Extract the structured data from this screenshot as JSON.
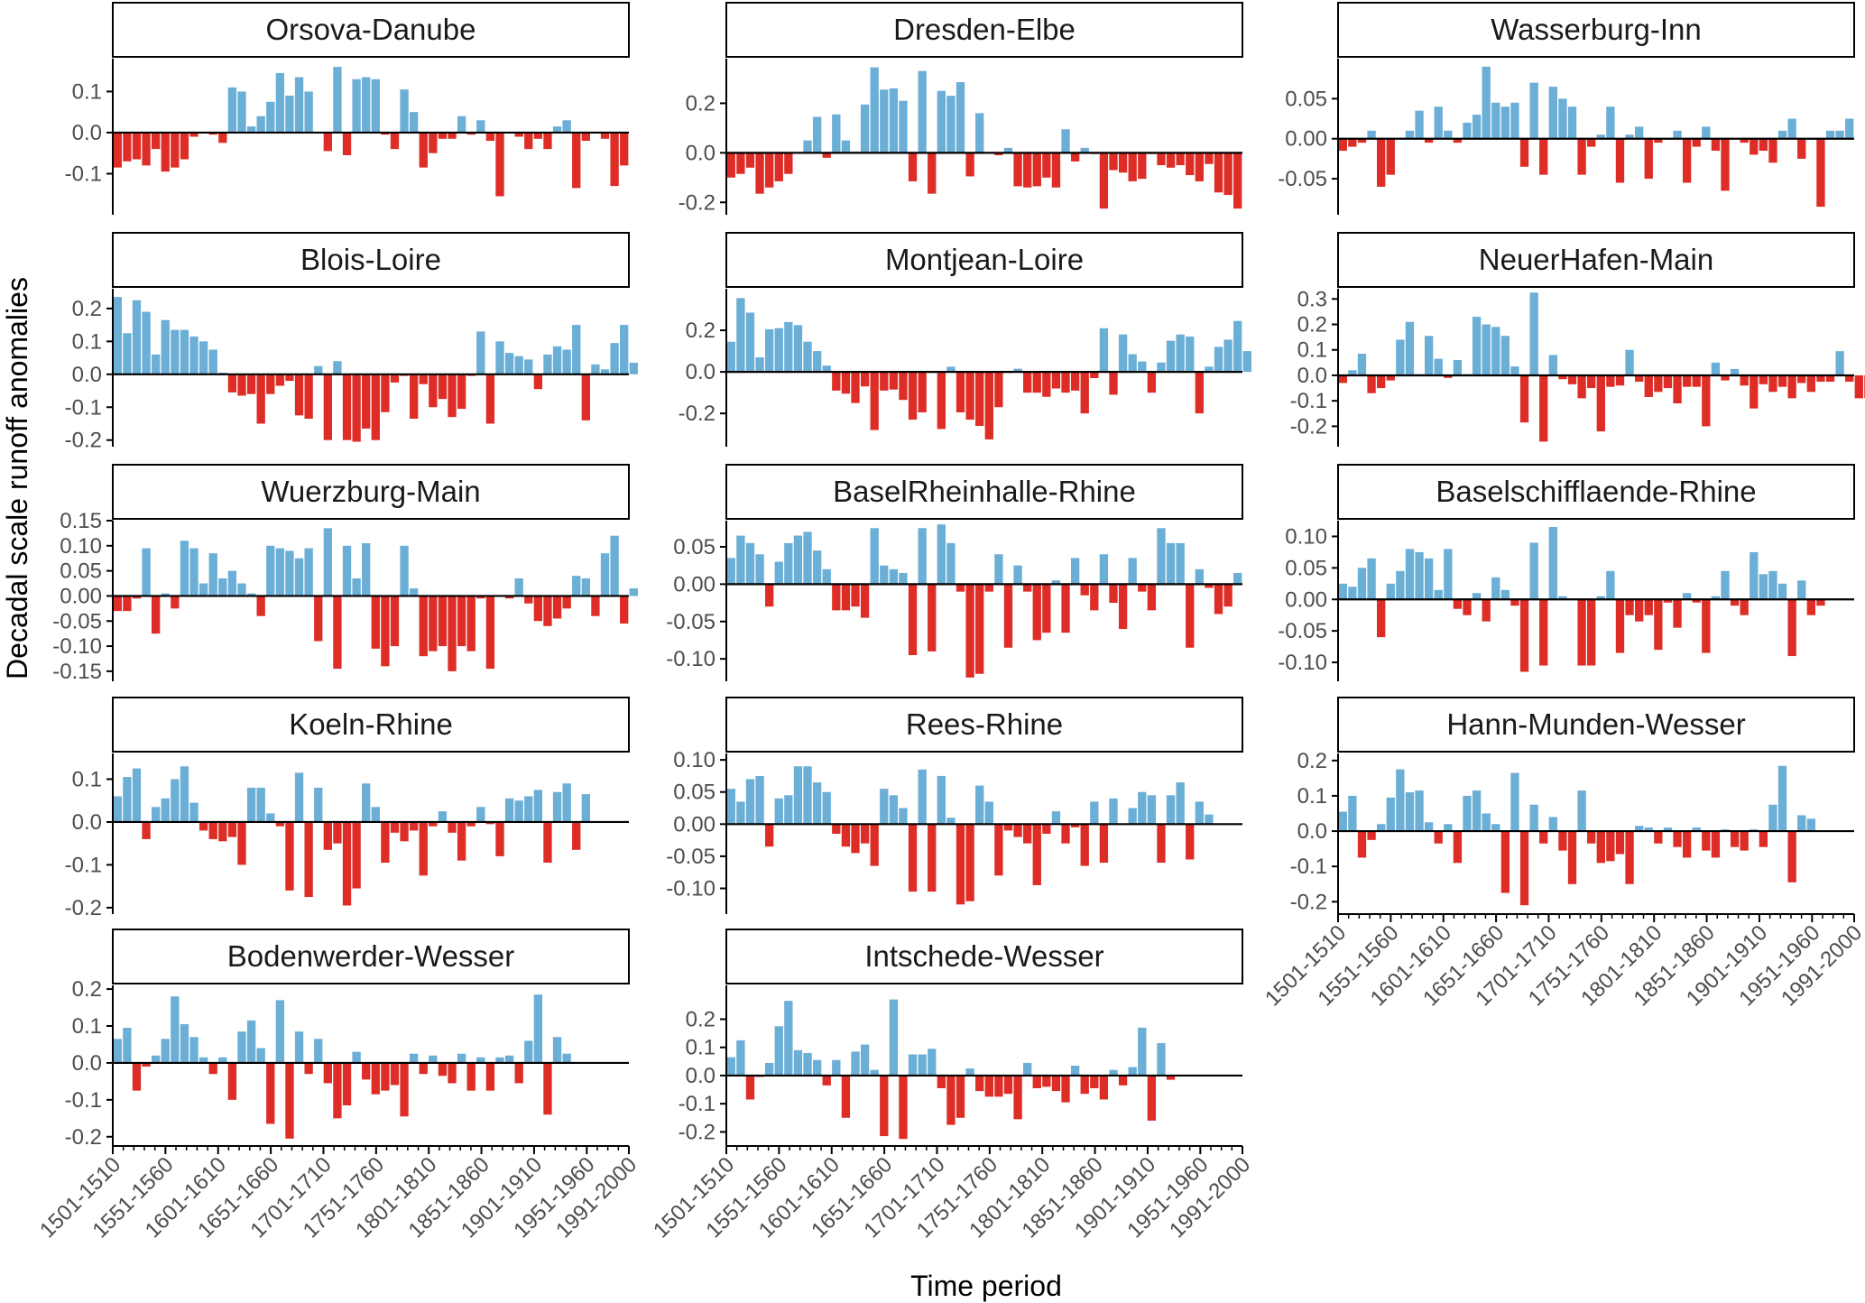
{
  "figure": {
    "xlabel": "Time period",
    "ylabel": "Decadal scale runoff anomalies",
    "x_tick_labels": [
      "1501-1510",
      "1551-1560",
      "1601-1610",
      "1651-1660",
      "1701-1710",
      "1751-1760",
      "1801-1810",
      "1851-1860",
      "1901-1910",
      "1951-1960",
      "1991-2000"
    ],
    "colors": {
      "positive": "#6baed6",
      "negative": "#de2d26",
      "axis": "#000000",
      "tick_text": "#4d4d4d",
      "strip_border": "#000000"
    }
  },
  "chart_data": [
    {
      "type": "bar",
      "title": "Orsova-Danube",
      "ylim": [
        -0.2,
        0.18
      ],
      "yticks": [
        -0.1,
        0,
        0.1
      ],
      "ytick_labels": [
        "-0.1",
        "0.0",
        "0.1"
      ],
      "values": [
        -0.085,
        -0.07,
        -0.065,
        -0.08,
        -0.04,
        -0.095,
        -0.085,
        -0.065,
        -0.01,
        0,
        -0.005,
        -0.025,
        0.11,
        0.1,
        0.015,
        0.04,
        0.075,
        0.145,
        0.09,
        0.135,
        0.1,
        0,
        -0.045,
        0.16,
        -0.055,
        0.13,
        0.135,
        0.13,
        -0.005,
        -0.04,
        0.105,
        0.05,
        -0.085,
        -0.05,
        -0.015,
        -0.015,
        0.04,
        -0.005,
        0.03,
        -0.02,
        -0.155,
        0,
        -0.01,
        -0.04,
        -0.015,
        -0.04,
        0.015,
        0.03,
        -0.135,
        -0.02,
        0,
        -0.015,
        -0.13,
        -0.08
      ]
    },
    {
      "type": "bar",
      "title": "Dresden-Elbe",
      "ylim": [
        -0.25,
        0.38
      ],
      "yticks": [
        -0.2,
        0,
        0.2
      ],
      "ytick_labels": [
        "-0.2",
        "0.0",
        "0.2"
      ],
      "values": [
        -0.1,
        -0.085,
        -0.06,
        -0.165,
        -0.14,
        -0.115,
        -0.085,
        0,
        0.05,
        0.145,
        -0.02,
        0.155,
        0.05,
        0.005,
        0.195,
        0.345,
        0.255,
        0.26,
        0.21,
        -0.115,
        0.33,
        -0.165,
        0.25,
        0.23,
        0.285,
        -0.095,
        0.16,
        0,
        -0.01,
        0.02,
        -0.135,
        -0.14,
        -0.135,
        -0.1,
        -0.14,
        0.095,
        -0.035,
        0.02,
        -0.005,
        -0.225,
        -0.07,
        -0.08,
        -0.115,
        -0.105,
        -0.005,
        -0.05,
        -0.06,
        -0.05,
        -0.09,
        -0.115,
        -0.045,
        -0.16,
        -0.17,
        -0.225
      ]
    },
    {
      "type": "bar",
      "title": "Wasserburg-Inn",
      "ylim": [
        -0.095,
        0.1
      ],
      "yticks": [
        -0.05,
        0,
        0.05
      ],
      "ytick_labels": [
        "-0.05",
        "0.00",
        "0.05"
      ],
      "values": [
        -0.015,
        -0.01,
        -0.005,
        0.01,
        -0.06,
        -0.045,
        0,
        0.01,
        0.035,
        -0.005,
        0.04,
        0.01,
        -0.005,
        0.02,
        0.03,
        0.09,
        0.045,
        0.04,
        0.045,
        -0.035,
        0.07,
        -0.045,
        0.065,
        0.05,
        0.04,
        -0.045,
        -0.01,
        0.005,
        0.04,
        -0.055,
        0.005,
        0.015,
        -0.05,
        -0.005,
        0,
        0.01,
        -0.055,
        -0.01,
        0.015,
        -0.015,
        -0.065,
        0,
        -0.005,
        -0.02,
        -0.015,
        -0.03,
        0.01,
        0.025,
        -0.025,
        0,
        -0.085,
        0.01,
        0.01,
        0.025
      ]
    },
    {
      "type": "bar",
      "title": "Blois-Loire",
      "ylim": [
        -0.22,
        0.26
      ],
      "yticks": [
        -0.2,
        -0.1,
        0,
        0.1,
        0.2
      ],
      "ytick_labels": [
        "-0.2",
        "-0.1",
        "0.0",
        "0.1",
        "0.2"
      ],
      "values": [
        0.235,
        0.125,
        0.225,
        0.19,
        0.06,
        0.165,
        0.135,
        0.135,
        0.115,
        0.1,
        0.075,
        0.005,
        -0.055,
        -0.065,
        -0.06,
        -0.15,
        -0.06,
        -0.035,
        -0.02,
        -0.125,
        -0.135,
        0.025,
        -0.2,
        0.04,
        -0.2,
        -0.205,
        -0.165,
        -0.2,
        -0.115,
        -0.025,
        -0.005,
        -0.135,
        -0.03,
        -0.1,
        -0.075,
        -0.13,
        -0.105,
        -0.005,
        0.13,
        -0.15,
        0.1,
        0.065,
        0.055,
        0.045,
        -0.045,
        0.06,
        0.085,
        0.075,
        0.15,
        -0.14,
        0.03,
        0.015,
        0.095,
        0.15,
        0.035
      ]
    },
    {
      "type": "bar",
      "title": "Montjean-Loire",
      "ylim": [
        -0.36,
        0.4
      ],
      "yticks": [
        -0.2,
        0,
        0.2
      ],
      "ytick_labels": [
        "-0.2",
        "0.0",
        "0.2"
      ],
      "values": [
        0.145,
        0.355,
        0.285,
        0.07,
        0.205,
        0.21,
        0.24,
        0.225,
        0.145,
        0.1,
        0.03,
        -0.09,
        -0.105,
        -0.15,
        -0.07,
        -0.28,
        -0.09,
        -0.085,
        -0.135,
        -0.23,
        -0.195,
        -0.005,
        -0.275,
        0.025,
        -0.195,
        -0.23,
        -0.26,
        -0.325,
        -0.17,
        -0.005,
        0.015,
        -0.1,
        -0.1,
        -0.12,
        -0.08,
        -0.1,
        -0.09,
        -0.2,
        -0.03,
        0.21,
        -0.11,
        0.18,
        0.085,
        0.05,
        -0.1,
        0.045,
        0.15,
        0.18,
        0.17,
        -0.2,
        0.025,
        0.12,
        0.155,
        0.245,
        0.1
      ]
    },
    {
      "type": "bar",
      "title": "NeuerHafen-Main",
      "ylim": [
        -0.28,
        0.34
      ],
      "yticks": [
        -0.2,
        -0.1,
        0,
        0.1,
        0.2,
        0.3
      ],
      "ytick_labels": [
        "-0.2",
        "-0.1",
        "0.0",
        "0.1",
        "0.2",
        "0.3"
      ],
      "values": [
        -0.03,
        0.02,
        0.085,
        -0.07,
        -0.05,
        -0.02,
        0.14,
        0.21,
        0.005,
        0.155,
        0.065,
        -0.01,
        0.06,
        0.005,
        0.23,
        0.2,
        0.19,
        0.155,
        0.035,
        -0.185,
        0.325,
        -0.26,
        0.08,
        -0.015,
        -0.035,
        -0.09,
        -0.05,
        -0.22,
        -0.045,
        -0.04,
        0.1,
        -0.025,
        -0.085,
        -0.065,
        -0.05,
        -0.11,
        -0.045,
        -0.045,
        -0.2,
        0.05,
        -0.02,
        0.025,
        -0.04,
        -0.13,
        -0.035,
        -0.065,
        -0.045,
        -0.09,
        -0.03,
        -0.065,
        -0.025,
        -0.025,
        0.095,
        -0.025,
        -0.09,
        -0.09
      ]
    },
    {
      "type": "bar",
      "title": "Wuerzburg-Main",
      "ylim": [
        -0.17,
        0.15
      ],
      "yticks": [
        -0.15,
        -0.1,
        -0.05,
        0,
        0.05,
        0.1,
        0.15
      ],
      "ytick_labels": [
        "-0.15",
        "-0.10",
        "-0.05",
        "0.00",
        "0.05",
        "0.10",
        "0.15"
      ],
      "values": [
        -0.03,
        -0.03,
        -0.005,
        0.095,
        -0.075,
        0.005,
        -0.025,
        0.11,
        0.095,
        0.025,
        0.085,
        0.035,
        0.05,
        0.025,
        0.005,
        -0.04,
        0.1,
        0.095,
        0.09,
        0.075,
        0.095,
        -0.09,
        0.135,
        -0.145,
        0.1,
        0.035,
        0.105,
        -0.105,
        -0.14,
        -0.1,
        0.1,
        0.015,
        -0.12,
        -0.11,
        -0.1,
        -0.15,
        -0.1,
        -0.11,
        -0.005,
        -0.145,
        0,
        -0.005,
        0.035,
        -0.015,
        -0.05,
        -0.06,
        -0.045,
        -0.025,
        0.04,
        0.035,
        -0.04,
        0.085,
        0.12,
        -0.055,
        0.015
      ]
    },
    {
      "type": "bar",
      "title": "BaselRheinhalle-Rhine",
      "ylim": [
        -0.13,
        0.085
      ],
      "yticks": [
        -0.1,
        -0.05,
        0,
        0.05
      ],
      "ytick_labels": [
        "-0.10",
        "-0.05",
        "0.00",
        "0.05"
      ],
      "values": [
        0.035,
        0.065,
        0.055,
        0.04,
        -0.03,
        0.03,
        0.055,
        0.065,
        0.07,
        0.045,
        0.02,
        -0.035,
        -0.035,
        -0.03,
        -0.045,
        0.075,
        0.025,
        0.02,
        0.015,
        -0.095,
        0.075,
        -0.09,
        0.08,
        0.055,
        -0.01,
        -0.125,
        -0.12,
        -0.01,
        0.04,
        -0.085,
        0.025,
        -0.01,
        -0.075,
        -0.065,
        0.005,
        -0.065,
        0.035,
        -0.015,
        -0.035,
        0.04,
        -0.025,
        -0.06,
        0.035,
        -0.01,
        -0.035,
        0.075,
        0.055,
        0.055,
        -0.085,
        0.02,
        -0.005,
        -0.04,
        -0.03,
        0.015
      ]
    },
    {
      "type": "bar",
      "title": "Baselschifflaende-Rhine",
      "ylim": [
        -0.13,
        0.125
      ],
      "yticks": [
        -0.1,
        -0.05,
        0,
        0.05,
        0.1
      ],
      "ytick_labels": [
        "-0.10",
        "-0.05",
        "0.00",
        "0.05",
        "0.10"
      ],
      "values": [
        0.025,
        0.02,
        0.05,
        0.065,
        -0.06,
        0.025,
        0.045,
        0.08,
        0.075,
        0.065,
        0.015,
        0.08,
        -0.015,
        -0.025,
        0.01,
        -0.035,
        0.035,
        0.015,
        -0.01,
        -0.115,
        0.09,
        -0.105,
        0.115,
        0.005,
        0,
        -0.105,
        -0.105,
        0.005,
        0.045,
        -0.085,
        -0.025,
        -0.035,
        -0.025,
        -0.08,
        -0.005,
        -0.045,
        0.01,
        -0.005,
        -0.085,
        0.005,
        0.045,
        -0.01,
        -0.025,
        0.075,
        0.04,
        0.045,
        0.025,
        -0.09,
        0.03,
        -0.025,
        -0.01,
        0
      ]
    },
    {
      "type": "bar",
      "title": "Koeln-Rhine",
      "ylim": [
        -0.215,
        0.16
      ],
      "yticks": [
        -0.2,
        -0.1,
        0,
        0.1
      ],
      "ytick_labels": [
        "-0.2",
        "-0.1",
        "0.0",
        "0.1"
      ],
      "values": [
        0.06,
        0.105,
        0.125,
        -0.04,
        0.035,
        0.055,
        0.1,
        0.13,
        0.045,
        -0.02,
        -0.04,
        -0.045,
        -0.035,
        -0.1,
        0.08,
        0.08,
        0.02,
        -0.01,
        -0.16,
        0.115,
        -0.175,
        0.08,
        -0.065,
        -0.05,
        -0.195,
        -0.155,
        0.09,
        0.035,
        -0.095,
        -0.025,
        -0.045,
        -0.02,
        -0.125,
        -0.01,
        0.025,
        -0.025,
        -0.09,
        -0.01,
        0.035,
        -0.005,
        -0.08,
        0.055,
        0.05,
        0.06,
        0.075,
        -0.095,
        0.07,
        0.09,
        -0.065,
        0.065
      ]
    },
    {
      "type": "bar",
      "title": "Rees-Rhine",
      "ylim": [
        -0.14,
        0.11
      ],
      "yticks": [
        -0.1,
        -0.05,
        0,
        0.05,
        0.1
      ],
      "ytick_labels": [
        "-0.10",
        "-0.05",
        "0.00",
        "0.05",
        "0.10"
      ],
      "values": [
        0.055,
        0.035,
        0.07,
        0.075,
        -0.035,
        0.04,
        0.045,
        0.09,
        0.09,
        0.065,
        0.05,
        -0.015,
        -0.035,
        -0.045,
        -0.03,
        -0.065,
        0.055,
        0.045,
        0.025,
        -0.105,
        0.085,
        -0.105,
        0.075,
        0.01,
        -0.125,
        -0.12,
        0.06,
        0.035,
        -0.08,
        -0.01,
        -0.02,
        -0.03,
        -0.095,
        -0.015,
        0.02,
        -0.03,
        -0.005,
        -0.065,
        0.035,
        -0.06,
        0.04,
        0,
        0.025,
        0.05,
        0.045,
        -0.06,
        0.045,
        0.065,
        -0.055,
        0.035,
        0.015
      ]
    },
    {
      "type": "bar",
      "title": "Hann-Munden-Wesser",
      "ylim": [
        -0.235,
        0.22
      ],
      "yticks": [
        -0.2,
        -0.1,
        0,
        0.1,
        0.2
      ],
      "ytick_labels": [
        "-0.2",
        "-0.1",
        "0.0",
        "0.1",
        "0.2"
      ],
      "values": [
        0.055,
        0.1,
        -0.075,
        -0.025,
        0.02,
        0.095,
        0.175,
        0.11,
        0.115,
        0.025,
        -0.035,
        0.02,
        -0.09,
        0.1,
        0.115,
        0.05,
        0.02,
        -0.175,
        0.165,
        -0.21,
        0.075,
        -0.035,
        0.04,
        -0.055,
        -0.15,
        0.115,
        -0.035,
        -0.09,
        -0.085,
        -0.065,
        -0.15,
        0.015,
        0.01,
        -0.035,
        0.01,
        -0.045,
        -0.075,
        0.01,
        -0.055,
        -0.075,
        0.005,
        -0.045,
        -0.055,
        0.005,
        -0.045,
        0.075,
        0.185,
        -0.145,
        0.045,
        0.035
      ]
    },
    {
      "type": "bar",
      "title": "Bodenwerder-Wesser",
      "ylim": [
        -0.225,
        0.21
      ],
      "yticks": [
        -0.2,
        -0.1,
        0,
        0.1,
        0.2
      ],
      "ytick_labels": [
        "-0.2",
        "-0.1",
        "0.0",
        "0.1",
        "0.2"
      ],
      "values": [
        0.065,
        0.095,
        -0.075,
        -0.01,
        0.02,
        0.065,
        0.18,
        0.105,
        0.07,
        0.015,
        -0.03,
        0.015,
        -0.1,
        0.085,
        0.115,
        0.04,
        -0.165,
        0.17,
        -0.205,
        0.085,
        -0.03,
        0.065,
        -0.055,
        -0.15,
        -0.115,
        0.03,
        -0.045,
        -0.085,
        -0.075,
        -0.06,
        -0.145,
        0.025,
        -0.03,
        0.02,
        -0.035,
        -0.055,
        0.025,
        -0.075,
        0.015,
        -0.075,
        0.015,
        0.02,
        -0.055,
        0.06,
        0.185,
        -0.14,
        0.07,
        0.025
      ]
    },
    {
      "type": "bar",
      "title": "Intschede-Wesser",
      "ylim": [
        -0.25,
        0.32
      ],
      "yticks": [
        -0.2,
        -0.1,
        0,
        0.1,
        0.2
      ],
      "ytick_labels": [
        "-0.2",
        "-0.1",
        "0.0",
        "0.1",
        "0.2"
      ],
      "values": [
        0.065,
        0.125,
        -0.085,
        -0.005,
        0.045,
        0.175,
        0.265,
        0.09,
        0.08,
        0.055,
        -0.035,
        0.055,
        -0.15,
        0.085,
        0.11,
        0.02,
        -0.215,
        0.27,
        -0.225,
        0.075,
        0.075,
        0.095,
        -0.045,
        -0.175,
        -0.15,
        0.025,
        -0.055,
        -0.075,
        -0.075,
        -0.065,
        -0.155,
        0.045,
        -0.045,
        -0.04,
        -0.055,
        -0.095,
        0.035,
        -0.065,
        -0.045,
        -0.085,
        0.02,
        -0.035,
        0.03,
        0.17,
        -0.16,
        0.115,
        -0.015
      ]
    }
  ]
}
